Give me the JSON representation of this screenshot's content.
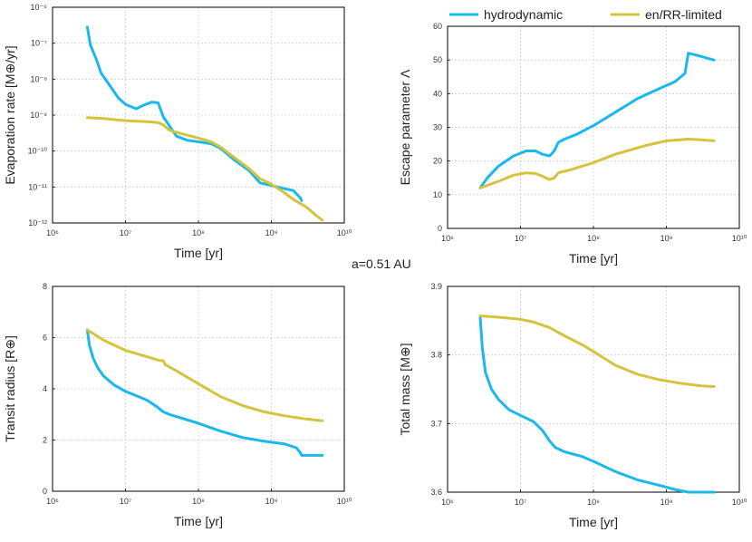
{
  "figure_label": "a=0.51 AU",
  "legend": {
    "hydro_label": "hydrodynamic",
    "rr_label": "en/RR-limited",
    "hydro_color": "#1ab8ec",
    "rr_color": "#d4c43c"
  },
  "chart_data": [
    {
      "type": "line",
      "id": "evap",
      "xscale": "log",
      "yscale": "log",
      "xlim": [
        1000000.0,
        10000000000.0
      ],
      "ylim": [
        1e-12,
        1e-06
      ],
      "xticks": [
        1000000.0,
        10000000.0,
        100000000.0,
        1000000000.0,
        10000000000.0
      ],
      "xtick_labels": [
        "10⁶",
        "10⁷",
        "10⁸",
        "10⁹",
        "10¹⁰"
      ],
      "yticks": [
        1e-12,
        1e-11,
        1e-10,
        1e-09,
        1e-08,
        1e-07,
        1e-06
      ],
      "ytick_labels": [
        "10⁻¹²",
        "10⁻¹¹",
        "10⁻¹⁰",
        "10⁻⁹",
        "10⁻⁸",
        "10⁻⁷",
        "10⁻⁶"
      ],
      "xlabel": "Time [yr]",
      "ylabel": "Evaporation rate [M⊕/yr]",
      "grid": true,
      "series": [
        {
          "key": "hydro",
          "points": [
            [
              3000000.0,
              2.8e-07
            ],
            [
              3300000.0,
              9e-08
            ],
            [
              4000000.0,
              3.5e-08
            ],
            [
              4600000.0,
              1.5e-08
            ],
            [
              6000000.0,
              7e-09
            ],
            [
              8000000.0,
              3e-09
            ],
            [
              10000000.0,
              2e-09
            ],
            [
              14000000.0,
              1.5e-09
            ],
            [
              18000000.0,
              1.9e-09
            ],
            [
              23000000.0,
              2.3e-09
            ],
            [
              28000000.0,
              2.2e-09
            ],
            [
              33000000.0,
              9e-10
            ],
            [
              40000000.0,
              5e-10
            ],
            [
              50000000.0,
              2.6e-10
            ],
            [
              70000000.0,
              2e-10
            ],
            [
              100000000.0,
              1.8e-10
            ],
            [
              150000000.0,
              1.6e-10
            ],
            [
              200000000.0,
              1.2e-10
            ],
            [
              300000000.0,
              6e-11
            ],
            [
              500000000.0,
              2.8e-11
            ],
            [
              700000000.0,
              1.3e-11
            ],
            [
              1000000000.0,
              1.1e-11
            ],
            [
              1500000000.0,
              9e-12
            ],
            [
              2000000000.0,
              8e-12
            ],
            [
              2500000000.0,
              5e-12
            ],
            [
              2600000000.0,
              4.2e-12
            ]
          ]
        },
        {
          "key": "rr",
          "points": [
            [
              3000000.0,
              8.5e-10
            ],
            [
              5000000.0,
              8e-10
            ],
            [
              10000000.0,
              7e-10
            ],
            [
              20000000.0,
              6.6e-10
            ],
            [
              28000000.0,
              6.2e-10
            ],
            [
              33000000.0,
              5.3e-10
            ],
            [
              40000000.0,
              3.8e-10
            ],
            [
              60000000.0,
              3e-10
            ],
            [
              100000000.0,
              2.3e-10
            ],
            [
              150000000.0,
              1.8e-10
            ],
            [
              200000000.0,
              1.3e-10
            ],
            [
              300000000.0,
              7e-11
            ],
            [
              500000000.0,
              3.2e-11
            ],
            [
              700000000.0,
              1.7e-11
            ],
            [
              1000000000.0,
              1.2e-11
            ],
            [
              1500000000.0,
              7e-12
            ],
            [
              2000000000.0,
              4.5e-12
            ],
            [
              3000000000.0,
              2.8e-12
            ],
            [
              4000000000.0,
              1.7e-12
            ],
            [
              5000000000.0,
              1.2e-12
            ]
          ]
        }
      ]
    },
    {
      "type": "line",
      "id": "escape",
      "xscale": "log",
      "yscale": "linear",
      "xlim": [
        1000000.0,
        10000000000.0
      ],
      "ylim": [
        0,
        60
      ],
      "xticks": [
        1000000.0,
        10000000.0,
        100000000.0,
        1000000000.0,
        10000000000.0
      ],
      "xtick_labels": [
        "10⁶",
        "10⁷",
        "10⁸",
        "10⁹",
        "10¹⁰"
      ],
      "yticks": [
        0,
        10,
        20,
        30,
        40,
        50,
        60
      ],
      "ytick_labels": [
        "0",
        "10",
        "20",
        "30",
        "40",
        "50",
        "60"
      ],
      "xlabel": "Time [yr]",
      "ylabel": "Escape parameter Λ",
      "grid": true,
      "series": [
        {
          "key": "hydro",
          "points": [
            [
              2800000.0,
              12
            ],
            [
              3500000.0,
              15
            ],
            [
              5000000.0,
              18.5
            ],
            [
              8000000.0,
              21.5
            ],
            [
              12000000.0,
              23
            ],
            [
              16000000.0,
              23
            ],
            [
              20000000.0,
              22
            ],
            [
              25000000.0,
              21.5
            ],
            [
              29000000.0,
              23
            ],
            [
              33000000.0,
              25.5
            ],
            [
              40000000.0,
              26.5
            ],
            [
              60000000.0,
              28
            ],
            [
              100000000.0,
              30.5
            ],
            [
              200000000.0,
              34.5
            ],
            [
              400000000.0,
              38.5
            ],
            [
              800000000.0,
              41.5
            ],
            [
              1300000000.0,
              43.5
            ],
            [
              1800000000.0,
              46
            ],
            [
              2000000000.0,
              52
            ],
            [
              2500000000.0,
              51.5
            ],
            [
              4500000000.0,
              50
            ]
          ]
        },
        {
          "key": "rr",
          "points": [
            [
              2800000.0,
              12
            ],
            [
              5000000.0,
              14
            ],
            [
              8000000.0,
              15.8
            ],
            [
              12000000.0,
              16.5
            ],
            [
              16000000.0,
              16.3
            ],
            [
              20000000.0,
              15.5
            ],
            [
              25000000.0,
              14.5
            ],
            [
              29000000.0,
              15
            ],
            [
              33000000.0,
              16.5
            ],
            [
              50000000.0,
              17.5
            ],
            [
              100000000.0,
              19.5
            ],
            [
              200000000.0,
              22
            ],
            [
              500000000.0,
              24.5
            ],
            [
              1000000000.0,
              26
            ],
            [
              2000000000.0,
              26.5
            ],
            [
              3000000000.0,
              26.3
            ],
            [
              4500000000.0,
              26
            ]
          ]
        }
      ]
    },
    {
      "type": "line",
      "id": "radius",
      "xscale": "log",
      "yscale": "linear",
      "xlim": [
        1000000.0,
        10000000000.0
      ],
      "ylim": [
        0,
        8
      ],
      "xticks": [
        1000000.0,
        10000000.0,
        100000000.0,
        1000000000.0,
        10000000000.0
      ],
      "xtick_labels": [
        "10⁶",
        "10⁷",
        "10⁸",
        "10⁹",
        "10¹⁰"
      ],
      "yticks": [
        0,
        2,
        4,
        6,
        8
      ],
      "ytick_labels": [
        "0",
        "2",
        "4",
        "6",
        "8"
      ],
      "xlabel": "Time [yr]",
      "ylabel": "Transit radius [R⊕]",
      "grid": true,
      "series": [
        {
          "key": "hydro",
          "points": [
            [
              3000000.0,
              6.3
            ],
            [
              3200000.0,
              5.7
            ],
            [
              3600000.0,
              5.2
            ],
            [
              4200000.0,
              4.8
            ],
            [
              5000000.0,
              4.5
            ],
            [
              7000000.0,
              4.15
            ],
            [
              10000000.0,
              3.9
            ],
            [
              15000000.0,
              3.7
            ],
            [
              20000000.0,
              3.55
            ],
            [
              27000000.0,
              3.3
            ],
            [
              33000000.0,
              3.1
            ],
            [
              40000000.0,
              3.0
            ],
            [
              60000000.0,
              2.85
            ],
            [
              100000000.0,
              2.65
            ],
            [
              200000000.0,
              2.35
            ],
            [
              400000000.0,
              2.1
            ],
            [
              800000000.0,
              1.95
            ],
            [
              1500000000.0,
              1.85
            ],
            [
              2200000000.0,
              1.7
            ],
            [
              2500000000.0,
              1.5
            ],
            [
              2600000000.0,
              1.4
            ],
            [
              5000000000.0,
              1.4
            ]
          ]
        },
        {
          "key": "rr",
          "points": [
            [
              3000000.0,
              6.3
            ],
            [
              5000000.0,
              5.9
            ],
            [
              10000000.0,
              5.5
            ],
            [
              20000000.0,
              5.25
            ],
            [
              30000000.0,
              5.1
            ],
            [
              33000000.0,
              5.1
            ],
            [
              35000000.0,
              4.95
            ],
            [
              50000000.0,
              4.7
            ],
            [
              100000000.0,
              4.2
            ],
            [
              200000000.0,
              3.7
            ],
            [
              400000000.0,
              3.35
            ],
            [
              800000000.0,
              3.1
            ],
            [
              1500000000.0,
              2.95
            ],
            [
              3000000000.0,
              2.82
            ],
            [
              5000000000.0,
              2.75
            ]
          ]
        }
      ]
    },
    {
      "type": "line",
      "id": "mass",
      "xscale": "log",
      "yscale": "linear",
      "xlim": [
        1000000.0,
        10000000000.0
      ],
      "ylim": [
        3.6,
        3.9
      ],
      "xticks": [
        1000000.0,
        10000000.0,
        100000000.0,
        1000000000.0,
        10000000000.0
      ],
      "xtick_labels": [
        "10⁶",
        "10⁷",
        "10⁸",
        "10⁹",
        "10¹⁰"
      ],
      "yticks": [
        3.6,
        3.7,
        3.8,
        3.9
      ],
      "ytick_labels": [
        "3.6",
        "3.7",
        "3.8",
        "3.9"
      ],
      "xlabel": "Time [yr]",
      "ylabel": "Total mass [M⊕]",
      "grid": true,
      "series": [
        {
          "key": "hydro",
          "points": [
            [
              2800000.0,
              3.855
            ],
            [
              3000000.0,
              3.81
            ],
            [
              3300000.0,
              3.775
            ],
            [
              4000000.0,
              3.75
            ],
            [
              5000000.0,
              3.735
            ],
            [
              7000000.0,
              3.72
            ],
            [
              10000000.0,
              3.712
            ],
            [
              15000000.0,
              3.703
            ],
            [
              20000000.0,
              3.69
            ],
            [
              25000000.0,
              3.675
            ],
            [
              30000000.0,
              3.665
            ],
            [
              40000000.0,
              3.659
            ],
            [
              70000000.0,
              3.652
            ],
            [
              100000000.0,
              3.645
            ],
            [
              200000000.0,
              3.63
            ],
            [
              400000000.0,
              3.618
            ],
            [
              800000000.0,
              3.61
            ],
            [
              1300000000.0,
              3.604
            ],
            [
              2000000000.0,
              3.6
            ],
            [
              4500000000.0,
              3.6
            ]
          ]
        },
        {
          "key": "rr",
          "points": [
            [
              2800000.0,
              3.857
            ],
            [
              5000000.0,
              3.855
            ],
            [
              10000000.0,
              3.852
            ],
            [
              15000000.0,
              3.848
            ],
            [
              25000000.0,
              3.84
            ],
            [
              40000000.0,
              3.828
            ],
            [
              70000000.0,
              3.815
            ],
            [
              100000000.0,
              3.805
            ],
            [
              200000000.0,
              3.785
            ],
            [
              400000000.0,
              3.772
            ],
            [
              800000000.0,
              3.764
            ],
            [
              1500000000.0,
              3.759
            ],
            [
              3000000000.0,
              3.755
            ],
            [
              4500000000.0,
              3.754
            ]
          ]
        }
      ]
    }
  ]
}
